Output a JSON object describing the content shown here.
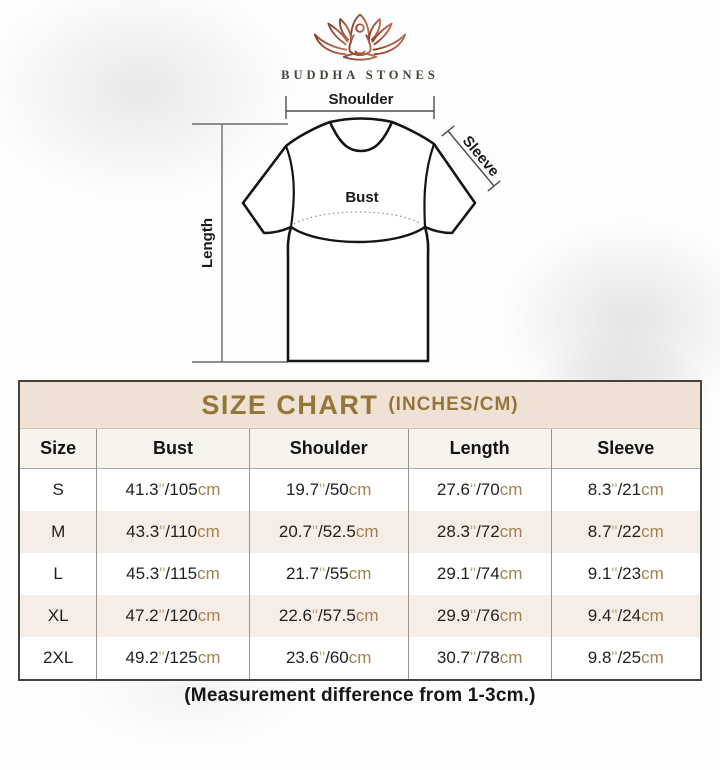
{
  "brand": {
    "name": "BUDDHA STONES"
  },
  "diagram": {
    "labels": {
      "shoulder": "Shoulder",
      "sleeve": "Sleeve",
      "bust": "Bust",
      "length": "Length"
    }
  },
  "size_chart": {
    "title": "SIZE CHART",
    "title_suffix": "(INCHES/CM)",
    "columns": [
      "Size",
      "Bust",
      "Shoulder",
      "Length",
      "Sleeve"
    ],
    "rows": [
      {
        "size": "S",
        "bust": {
          "in": "41.3",
          "cm": "105"
        },
        "shoulder": {
          "in": "19.7",
          "cm": "50"
        },
        "length": {
          "in": "27.6",
          "cm": "70"
        },
        "sleeve": {
          "in": "8.3",
          "cm": "21"
        }
      },
      {
        "size": "M",
        "bust": {
          "in": "43.3",
          "cm": "110"
        },
        "shoulder": {
          "in": "20.7",
          "cm": "52.5"
        },
        "length": {
          "in": "28.3",
          "cm": "72"
        },
        "sleeve": {
          "in": "8.7",
          "cm": "22"
        }
      },
      {
        "size": "L",
        "bust": {
          "in": "45.3",
          "cm": "115"
        },
        "shoulder": {
          "in": "21.7",
          "cm": "55"
        },
        "length": {
          "in": "29.1",
          "cm": "74"
        },
        "sleeve": {
          "in": "9.1",
          "cm": "23"
        }
      },
      {
        "size": "XL",
        "bust": {
          "in": "47.2",
          "cm": "120"
        },
        "shoulder": {
          "in": "22.6",
          "cm": "57.5"
        },
        "length": {
          "in": "29.9",
          "cm": "76"
        },
        "sleeve": {
          "in": "9.4",
          "cm": "24"
        }
      },
      {
        "size": "2XL",
        "bust": {
          "in": "49.2",
          "cm": "125"
        },
        "shoulder": {
          "in": "23.6",
          "cm": "60"
        },
        "length": {
          "in": "30.7",
          "cm": "78"
        },
        "sleeve": {
          "in": "9.8",
          "cm": "25"
        }
      }
    ]
  },
  "footer": {
    "note": "(Measurement difference from 1-3cm.)"
  },
  "colors": {
    "accent_gold": "#93763a",
    "band_beige": "#efe1d3",
    "row_beige": "#f6eee6",
    "cm_tan": "#a3824e",
    "logo_brown": "#8a4432"
  }
}
